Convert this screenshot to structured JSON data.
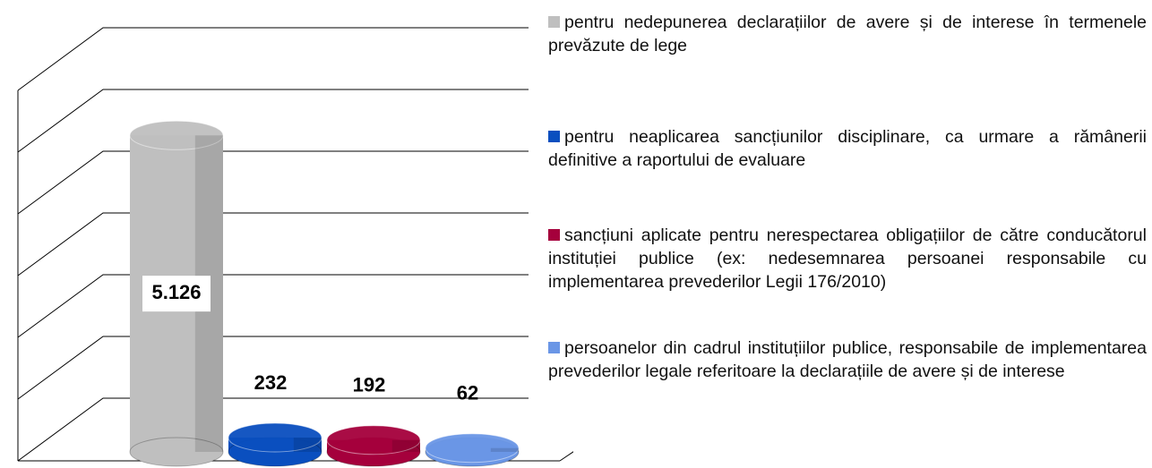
{
  "chart_data": {
    "type": "bar3d",
    "series": [
      {
        "name": "pentru nedepunerea declarațiilor de avere și de interese în termenele prevăzute de lege",
        "color": "#bfbfbf",
        "values": [
          5126
        ],
        "value_labels": [
          "5.126"
        ]
      },
      {
        "name": "pentru neaplicarea sancțiunilor disciplinare, ca urmare a rămânerii definitive a raportului de evaluare",
        "color": "#0a4fbf",
        "values": [
          232
        ],
        "value_labels": [
          "232"
        ]
      },
      {
        "name": "sancțiuni aplicate pentru nerespectarea obligațiilor de către conducătorul instituției publice (ex: nedesemnarea persoanei responsabile cu implementarea prevederilor Legii 176/2010)",
        "color": "#a5003c",
        "values": [
          192
        ],
        "value_labels": [
          "192"
        ]
      },
      {
        "name": "persoanelor din cadrul instituțiilor publice, responsabile de implementarea prevederilor legale referitoare la declarațiile de avere și de interese",
        "color": "#6a96e6",
        "values": [
          62
        ],
        "value_labels": [
          "62"
        ]
      }
    ],
    "ylim": [
      0,
      6000
    ],
    "yticks": [
      0,
      1000,
      2000,
      3000,
      4000,
      5000,
      6000
    ],
    "grid": true,
    "legend": "right"
  }
}
